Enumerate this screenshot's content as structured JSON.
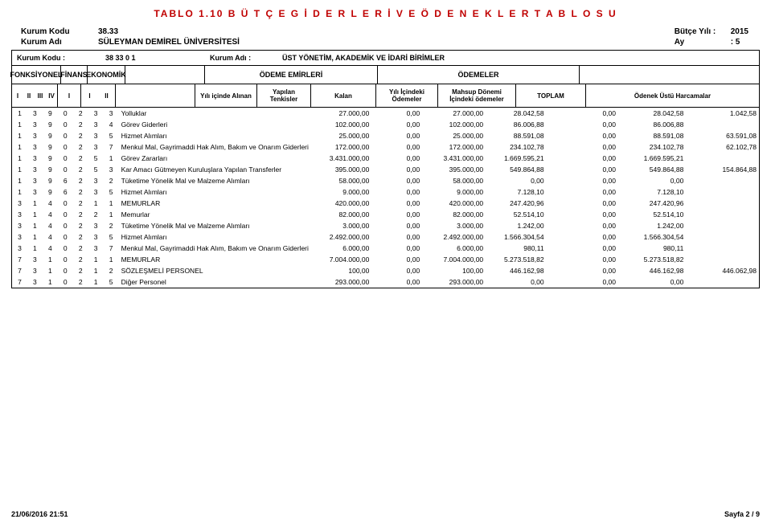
{
  "title": "TABLO 1.10  B Ü T Ç E   G İ D E R L E R İ   V E   Ö D E N E K L E R    T A B L O S U",
  "header": {
    "kurum_kodu_label": "Kurum Kodu",
    "kurum_kodu": "38.33",
    "kurum_adi_label": "Kurum Adı",
    "kurum_adi": "SÜLEYMAN DEMİREL ÜNİVERSİTESİ",
    "butce_yili_label": "Bütçe Yılı :",
    "butce_yili": "2015",
    "ay_label": "Ay",
    "ay_colon": ":",
    "ay": "5",
    "sub_kurum_kodu_label": "Kurum Kodu :",
    "sub_kurum_kodu": "38    33     0      1",
    "sub_kurum_adi_label": "Kurum Adı   :",
    "sub_kurum_adi": "ÜST YÖNETİM, AKADEMİK VE İDARİ BİRİMLER"
  },
  "band": {
    "fonksiyonel": "FONKSİYONEL",
    "finans": "FİNANS",
    "ekonomik": "EKONOMİK",
    "odeme_emirleri": "ÖDEME EMİRLERİ",
    "odemeler": "ÖDEMELER",
    "levels_fonk": [
      "I",
      "II",
      "III",
      "IV"
    ],
    "levels_fin": [
      "I"
    ],
    "levels_eco": [
      "I",
      "II"
    ],
    "alinan": "Yılı içinde Alınan",
    "tenkis": "Yapılan Tenkisler",
    "kalan": "Kalan",
    "yilic": "Yılı İçindeki Ödemeler",
    "mahsup": "Mahsup Dönemi İçindeki ödemeler",
    "toplam": "TOPLAM",
    "ustun": "Ödenek Üstü Harcamalar"
  },
  "rows": [
    {
      "c": [
        "1",
        "3",
        "9",
        "0",
        "2",
        "3",
        "3"
      ],
      "desc": "Yolluklar",
      "alinan": "27.000,00",
      "tenkis": "0,00",
      "kalan": "27.000,00",
      "yilic": "28.042,58",
      "mahsup": "0,00",
      "toplam": "28.042,58",
      "ustun": "1.042,58"
    },
    {
      "c": [
        "1",
        "3",
        "9",
        "0",
        "2",
        "3",
        "4"
      ],
      "desc": "Görev Giderleri",
      "alinan": "102.000,00",
      "tenkis": "0,00",
      "kalan": "102.000,00",
      "yilic": "86.006,88",
      "mahsup": "0,00",
      "toplam": "86.006,88",
      "ustun": ""
    },
    {
      "c": [
        "1",
        "3",
        "9",
        "0",
        "2",
        "3",
        "5"
      ],
      "desc": "Hizmet Alımları",
      "alinan": "25.000,00",
      "tenkis": "0,00",
      "kalan": "25.000,00",
      "yilic": "88.591,08",
      "mahsup": "0,00",
      "toplam": "88.591,08",
      "ustun": "63.591,08"
    },
    {
      "c": [
        "1",
        "3",
        "9",
        "0",
        "2",
        "3",
        "7"
      ],
      "desc": "Menkul Mal, Gayrimaddi Hak Alım, Bakım ve Onarım Giderleri",
      "alinan": "172.000,00",
      "tenkis": "0,00",
      "kalan": "172.000,00",
      "yilic": "234.102,78",
      "mahsup": "0,00",
      "toplam": "234.102,78",
      "ustun": "62.102,78"
    },
    {
      "c": [
        "1",
        "3",
        "9",
        "0",
        "2",
        "5",
        "1"
      ],
      "desc": "Görev Zararları",
      "alinan": "3.431.000,00",
      "tenkis": "0,00",
      "kalan": "3.431.000,00",
      "yilic": "1.669.595,21",
      "mahsup": "0,00",
      "toplam": "1.669.595,21",
      "ustun": ""
    },
    {
      "c": [
        "1",
        "3",
        "9",
        "0",
        "2",
        "5",
        "3"
      ],
      "desc": "Kar Amacı Gütmeyen Kuruluşlara Yapılan Transferler",
      "alinan": "395.000,00",
      "tenkis": "0,00",
      "kalan": "395.000,00",
      "yilic": "549.864,88",
      "mahsup": "0,00",
      "toplam": "549.864,88",
      "ustun": "154.864,88"
    },
    {
      "c": [
        "1",
        "3",
        "9",
        "6",
        "2",
        "3",
        "2"
      ],
      "desc": "Tüketime Yönelik Mal ve Malzeme Alımları",
      "alinan": "58.000,00",
      "tenkis": "0,00",
      "kalan": "58.000,00",
      "yilic": "0,00",
      "mahsup": "0,00",
      "toplam": "0,00",
      "ustun": ""
    },
    {
      "c": [
        "1",
        "3",
        "9",
        "6",
        "2",
        "3",
        "5"
      ],
      "desc": "Hizmet Alımları",
      "alinan": "9.000,00",
      "tenkis": "0,00",
      "kalan": "9.000,00",
      "yilic": "7.128,10",
      "mahsup": "0,00",
      "toplam": "7.128,10",
      "ustun": ""
    },
    {
      "c": [
        "3",
        "1",
        "4",
        "0",
        "2",
        "1",
        "1"
      ],
      "desc": "MEMURLAR",
      "alinan": "420.000,00",
      "tenkis": "0,00",
      "kalan": "420.000,00",
      "yilic": "247.420,96",
      "mahsup": "0,00",
      "toplam": "247.420,96",
      "ustun": ""
    },
    {
      "c": [
        "3",
        "1",
        "4",
        "0",
        "2",
        "2",
        "1"
      ],
      "desc": "Memurlar",
      "alinan": "82.000,00",
      "tenkis": "0,00",
      "kalan": "82.000,00",
      "yilic": "52.514,10",
      "mahsup": "0,00",
      "toplam": "52.514,10",
      "ustun": ""
    },
    {
      "c": [
        "3",
        "1",
        "4",
        "0",
        "2",
        "3",
        "2"
      ],
      "desc": "Tüketime Yönelik Mal ve Malzeme Alımları",
      "alinan": "3.000,00",
      "tenkis": "0,00",
      "kalan": "3.000,00",
      "yilic": "1.242,00",
      "mahsup": "0,00",
      "toplam": "1.242,00",
      "ustun": ""
    },
    {
      "c": [
        "3",
        "1",
        "4",
        "0",
        "2",
        "3",
        "5"
      ],
      "desc": "Hizmet Alımları",
      "alinan": "2.492.000,00",
      "tenkis": "0,00",
      "kalan": "2.492.000,00",
      "yilic": "1.566.304,54",
      "mahsup": "0,00",
      "toplam": "1.566.304,54",
      "ustun": ""
    },
    {
      "c": [
        "3",
        "1",
        "4",
        "0",
        "2",
        "3",
        "7"
      ],
      "desc": "Menkul Mal, Gayrimaddi Hak Alım, Bakım ve Onarım Giderleri",
      "alinan": "6.000,00",
      "tenkis": "0,00",
      "kalan": "6.000,00",
      "yilic": "980,11",
      "mahsup": "0,00",
      "toplam": "980,11",
      "ustun": ""
    },
    {
      "c": [
        "7",
        "3",
        "1",
        "0",
        "2",
        "1",
        "1"
      ],
      "desc": "MEMURLAR",
      "alinan": "7.004.000,00",
      "tenkis": "0,00",
      "kalan": "7.004.000,00",
      "yilic": "5.273.518,82",
      "mahsup": "0,00",
      "toplam": "5.273.518,82",
      "ustun": ""
    },
    {
      "c": [
        "7",
        "3",
        "1",
        "0",
        "2",
        "1",
        "2"
      ],
      "desc": "SÖZLEŞMELİ PERSONEL",
      "alinan": "100,00",
      "tenkis": "0,00",
      "kalan": "100,00",
      "yilic": "446.162,98",
      "mahsup": "0,00",
      "toplam": "446.162,98",
      "ustun": "446.062,98"
    },
    {
      "c": [
        "7",
        "3",
        "1",
        "0",
        "2",
        "1",
        "5"
      ],
      "desc": "Diğer Personel",
      "alinan": "293.000,00",
      "tenkis": "0,00",
      "kalan": "293.000,00",
      "yilic": "0,00",
      "mahsup": "0,00",
      "toplam": "0,00",
      "ustun": ""
    }
  ],
  "footer": {
    "ts": "21/06/2016 21:51",
    "page": "Sayfa 2 / 9"
  },
  "colors": {
    "title": "#c00000",
    "border": "#000000",
    "text": "#000000",
    "bg": "#ffffff"
  }
}
